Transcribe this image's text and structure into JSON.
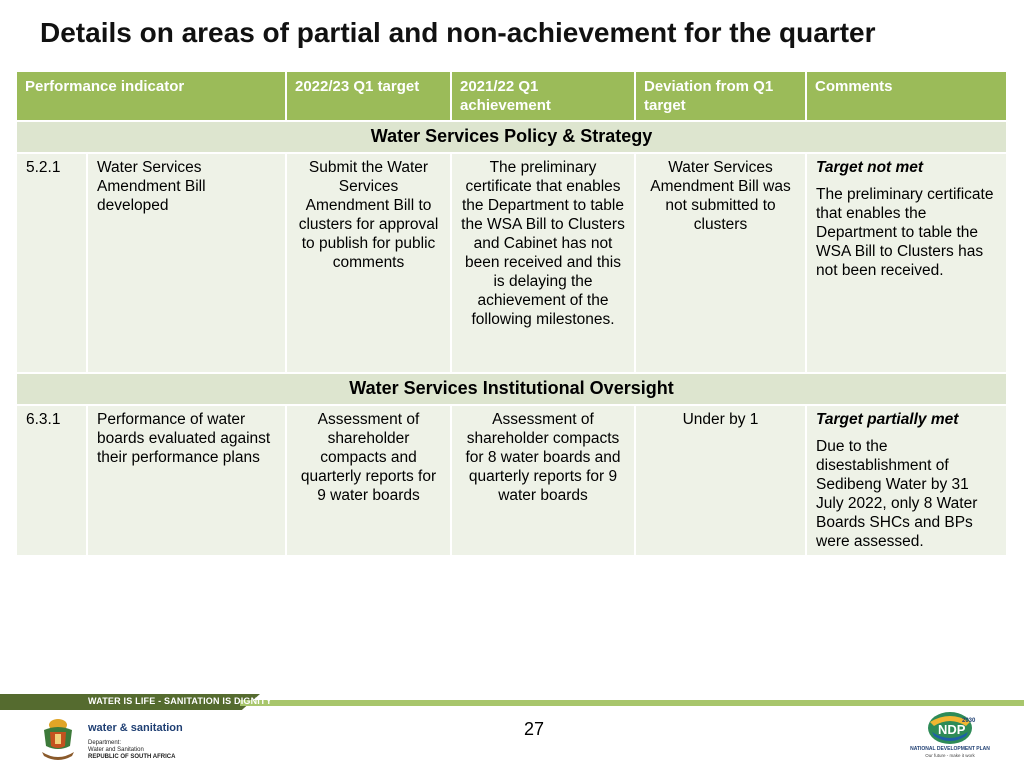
{
  "title": "Details on areas of partial and non-achievement for the quarter",
  "table": {
    "headers": [
      "Performance indicator",
      "2022/23 Q1 target",
      "2021/22 Q1 achievement",
      "Deviation from Q1 target",
      "Comments"
    ],
    "sections": [
      {
        "name": "Water Services Policy & Strategy",
        "row": {
          "code": "5.2.1",
          "indicator": "Water Services Amendment Bill developed",
          "target": "Submit the Water Services Amendment Bill to clusters for approval to publish for public comments",
          "achievement": "The preliminary certificate that enables the Department to table the WSA Bill to Clusters and Cabinet has not been received and this is delaying the achievement of the following milestones.",
          "deviation": "Water Services Amendment Bill was not submitted to clusters",
          "comment_status": "Target not met",
          "comment_text": "The preliminary certificate that enables the Department to table the WSA Bill to Clusters has not been received."
        }
      },
      {
        "name": "Water Services Institutional Oversight",
        "row": {
          "code": "6.3.1",
          "indicator": "Performance of water boards evaluated against their performance plans",
          "target": "Assessment of shareholder compacts and quarterly reports for 9 water boards",
          "achievement": "Assessment of shareholder compacts for 8 water boards and quarterly reports  for 9 water boards",
          "deviation": "Under by 1",
          "comment_status": "Target partially met",
          "comment_text": "Due to the disestablishment of Sedibeng Water by 31 July 2022, only 8 Water Boards SHCs and BPs were assessed."
        }
      }
    ]
  },
  "footer": {
    "slogan": "WATER IS LIFE - SANITATION IS DIGNITY",
    "page_number": "27",
    "department": {
      "name": "water & sanitation",
      "line1": "Department:",
      "line2": "Water and Sanitation",
      "line3": "REPUBLIC OF SOUTH AFRICA"
    },
    "ndp": {
      "year": "2030",
      "abbr": "NDP",
      "name": "NATIONAL DEVELOPMENT PLAN",
      "tagline": "Our future - make it work"
    }
  },
  "colors": {
    "header": "#9bbb59",
    "section": "#dde5cf",
    "row": "#eef2e7",
    "footer_dark": "#556b2f",
    "footer_light": "#a8c66c"
  }
}
